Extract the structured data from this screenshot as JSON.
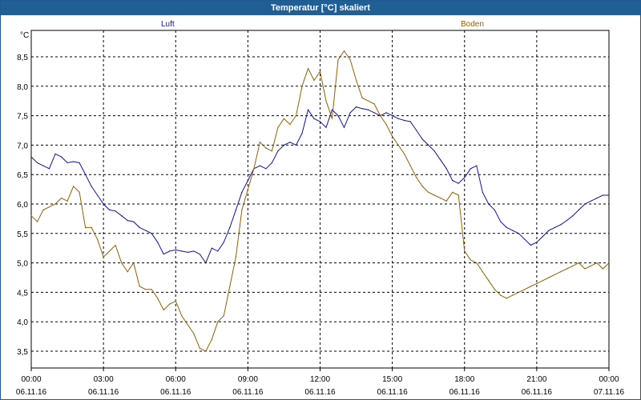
{
  "window": {
    "title": "Temperatur [°C] skaliert"
  },
  "chart_data": {
    "type": "line",
    "title": "Temperatur [°C] skaliert",
    "ylabel": "°C",
    "ylim": [
      3.2,
      9.0
    ],
    "yticks": [
      3.5,
      4.0,
      4.5,
      5.0,
      5.5,
      6.0,
      6.5,
      7.0,
      7.5,
      8.0,
      8.5
    ],
    "ytick_labels": [
      "3,5",
      "4,0",
      "4,5",
      "5,0",
      "5,5",
      "6,0",
      "6,5",
      "7,0",
      "7,5",
      "8,0",
      "8,5"
    ],
    "xlim": [
      0,
      24
    ],
    "xticks": [
      {
        "h": 0,
        "time": "00:00",
        "date": "06.11.16"
      },
      {
        "h": 3,
        "time": "03:00",
        "date": "06.11.16"
      },
      {
        "h": 6,
        "time": "06:00",
        "date": "06.11.16"
      },
      {
        "h": 9,
        "time": "09:00",
        "date": "06.11.16"
      },
      {
        "h": 12,
        "time": "12:00",
        "date": "06.11.16"
      },
      {
        "h": 15,
        "time": "15:00",
        "date": "06.11.16"
      },
      {
        "h": 18,
        "time": "18:00",
        "date": "06.11.16"
      },
      {
        "h": 21,
        "time": "21:00",
        "date": "06.11.16"
      },
      {
        "h": 24,
        "time": "00:00",
        "date": "07.11.16"
      }
    ],
    "grid": true,
    "series": [
      {
        "name": "Luft",
        "color": "#1010a8",
        "x": [
          0.0,
          0.25,
          0.5,
          0.75,
          1.0,
          1.25,
          1.5,
          1.75,
          2.0,
          2.25,
          2.5,
          2.75,
          3.0,
          3.25,
          3.5,
          3.75,
          4.0,
          4.25,
          4.5,
          4.75,
          5.0,
          5.25,
          5.5,
          5.75,
          6.0,
          6.25,
          6.5,
          6.75,
          7.0,
          7.25,
          7.5,
          7.75,
          8.0,
          8.25,
          8.5,
          8.75,
          9.0,
          9.25,
          9.5,
          9.75,
          10.0,
          10.25,
          10.5,
          10.75,
          11.0,
          11.25,
          11.5,
          11.75,
          12.0,
          12.25,
          12.5,
          12.75,
          13.0,
          13.25,
          13.5,
          13.75,
          14.0,
          14.25,
          14.5,
          14.75,
          15.0,
          15.25,
          15.5,
          15.75,
          16.0,
          16.25,
          16.5,
          16.75,
          17.0,
          17.25,
          17.5,
          17.75,
          18.0,
          18.25,
          18.5,
          18.75,
          19.0,
          19.25,
          19.5,
          19.75,
          20.0,
          20.25,
          20.5,
          20.75,
          21.0,
          21.25,
          21.5,
          21.75,
          22.0,
          22.25,
          22.5,
          22.75,
          23.0,
          23.25,
          23.5,
          23.75,
          24.0
        ],
        "values": [
          6.8,
          6.7,
          6.65,
          6.6,
          6.85,
          6.8,
          6.7,
          6.72,
          6.7,
          6.5,
          6.3,
          6.15,
          6.0,
          5.9,
          5.88,
          5.8,
          5.72,
          5.7,
          5.6,
          5.55,
          5.5,
          5.35,
          5.15,
          5.2,
          5.22,
          5.2,
          5.18,
          5.2,
          5.15,
          5.0,
          5.25,
          5.2,
          5.35,
          5.6,
          5.9,
          6.2,
          6.4,
          6.6,
          6.65,
          6.6,
          6.7,
          6.9,
          7.0,
          7.05,
          7.0,
          7.2,
          7.6,
          7.45,
          7.4,
          7.3,
          7.6,
          7.5,
          7.3,
          7.55,
          7.65,
          7.62,
          7.6,
          7.55,
          7.5,
          7.55,
          7.5,
          7.45,
          7.42,
          7.4,
          7.25,
          7.1,
          7.0,
          6.9,
          6.75,
          6.6,
          6.4,
          6.35,
          6.45,
          6.6,
          6.65,
          6.2,
          6.0,
          5.9,
          5.7,
          5.6,
          5.55,
          5.5,
          5.4,
          5.3,
          5.35,
          5.45,
          5.55,
          5.6,
          5.65,
          5.72,
          5.8,
          5.9,
          6.0,
          6.05,
          6.1,
          6.15,
          6.15
        ]
      },
      {
        "name": "Boden",
        "color": "#946000",
        "x": [
          0.0,
          0.25,
          0.5,
          0.75,
          1.0,
          1.25,
          1.5,
          1.75,
          2.0,
          2.25,
          2.5,
          2.75,
          3.0,
          3.25,
          3.5,
          3.75,
          4.0,
          4.25,
          4.5,
          4.75,
          5.0,
          5.25,
          5.5,
          5.75,
          6.0,
          6.25,
          6.5,
          6.75,
          7.0,
          7.25,
          7.5,
          7.75,
          8.0,
          8.25,
          8.5,
          8.75,
          9.0,
          9.25,
          9.5,
          9.75,
          10.0,
          10.25,
          10.5,
          10.75,
          11.0,
          11.25,
          11.5,
          11.75,
          12.0,
          12.25,
          12.5,
          12.75,
          13.0,
          13.25,
          13.5,
          13.75,
          14.0,
          14.25,
          14.5,
          14.75,
          15.0,
          15.25,
          15.5,
          15.75,
          16.0,
          16.25,
          16.5,
          16.75,
          17.0,
          17.25,
          17.5,
          17.75,
          18.0,
          18.25,
          18.5,
          18.75,
          19.0,
          19.25,
          19.5,
          19.75,
          20.0,
          20.25,
          20.5,
          20.75,
          21.0,
          21.25,
          21.5,
          21.75,
          22.0,
          22.25,
          22.5,
          22.75,
          23.0,
          23.25,
          23.5,
          23.75,
          24.0
        ],
        "values": [
          5.8,
          5.7,
          5.9,
          5.95,
          6.0,
          6.1,
          6.05,
          6.3,
          6.2,
          5.6,
          5.6,
          5.4,
          5.1,
          5.2,
          5.3,
          5.0,
          4.85,
          5.0,
          4.6,
          4.55,
          4.55,
          4.4,
          4.2,
          4.3,
          4.35,
          4.1,
          3.95,
          3.8,
          3.55,
          3.5,
          3.7,
          4.0,
          4.1,
          4.6,
          5.1,
          5.9,
          6.25,
          6.6,
          7.05,
          6.95,
          6.9,
          7.3,
          7.45,
          7.35,
          7.5,
          8.0,
          8.3,
          8.1,
          8.25,
          7.75,
          7.45,
          8.45,
          8.6,
          8.45,
          8.1,
          7.8,
          7.75,
          7.7,
          7.5,
          7.35,
          7.15,
          7.0,
          6.85,
          6.65,
          6.45,
          6.3,
          6.2,
          6.15,
          6.1,
          6.05,
          6.2,
          6.15,
          5.2,
          5.05,
          5.0,
          4.85,
          4.7,
          4.55,
          4.45,
          4.4,
          4.45,
          4.5,
          4.55,
          4.6,
          4.65,
          4.7,
          4.75,
          4.8,
          4.85,
          4.9,
          4.95,
          5.0,
          4.9,
          4.95,
          5.0,
          4.9,
          5.0
        ]
      }
    ]
  }
}
